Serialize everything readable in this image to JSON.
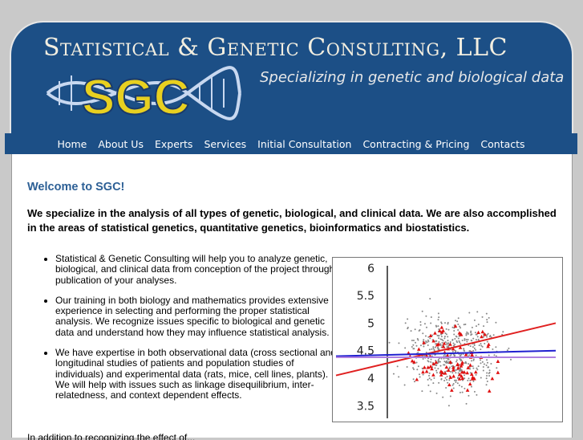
{
  "header": {
    "title": "Statistical & Genetic Consulting, LLC",
    "tagline": "Specializing in genetic and biological data",
    "logo_text": "SGC"
  },
  "nav": {
    "items": [
      "Home",
      "About Us",
      "Experts",
      "Services",
      "Initial Consultation",
      "Contracting & Pricing",
      "Contacts"
    ]
  },
  "main": {
    "welcome": "Welcome to SGC!",
    "intro": "We specialize in the analysis of all types of genetic, biological, and clinical data. We are also accomplished in the areas of statistical genetics, quantitative genetics, bioinformatics and biostatistics.",
    "bullets": [
      "Statistical & Genetic Consulting will help you to analyze genetic, biological, and clinical data from conception of the project through publication of your analyses.",
      "Our training in both biology and mathematics provides extensive experience in selecting and performing the proper statistical analysis. We recognize issues specific to biological and genetic data and understand how they may influence statistical analysis.",
      "We have expertise in both observational data (cross sectional and longitudinal studies of patients and population studies of individuals) and experimental data (rats, mice, cell lines, plants). We will help with issues such as linkage disequilibrium, inter-relatedness, and context dependent effects."
    ],
    "footer_partial": "In addition to recognizing the effect of..."
  },
  "chart_data": {
    "type": "scatter",
    "y_ticks": [
      "6",
      "5.5",
      "5",
      "4.5",
      "4",
      "3.5"
    ],
    "ylim": [
      3.3,
      6.1
    ],
    "series": [
      {
        "color": "#888888"
      },
      {
        "color": "#e01010"
      }
    ],
    "lines": [
      {
        "color": "#e02020",
        "from": [
          0,
          4.05
        ],
        "to": [
          1,
          5.0
        ]
      },
      {
        "color": "#2020d0",
        "from": [
          0,
          4.4
        ],
        "to": [
          1,
          4.5
        ]
      },
      {
        "color": "#b080e0",
        "from": [
          0,
          4.38
        ],
        "to": [
          1,
          4.38
        ]
      }
    ]
  }
}
